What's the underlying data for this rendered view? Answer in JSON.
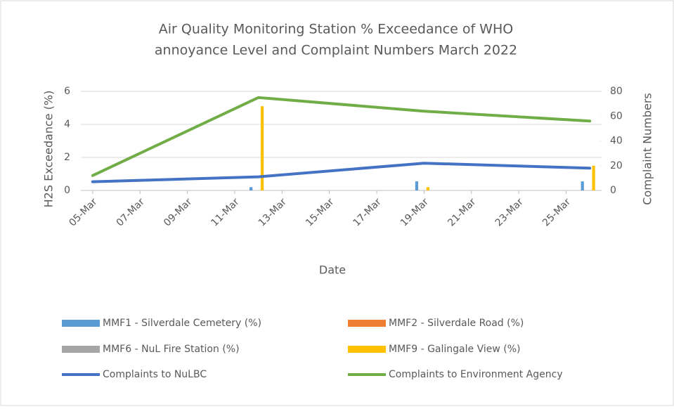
{
  "chart_data": {
    "type": "bar-line",
    "title_lines": [
      "Air Quality Monitoring Station % Exceedance of WHO",
      "annoyance Level and Complaint Numbers March 2022"
    ],
    "xlabel": "Date",
    "ylabel": "H2S Exceedance (%)",
    "y2label": "Complaint Numbers",
    "xlim": [
      4.5,
      26.5
    ],
    "xticks": [
      {
        "value": 5,
        "label": "05-Mar"
      },
      {
        "value": 7,
        "label": "07-Mar"
      },
      {
        "value": 9,
        "label": "09-Mar"
      },
      {
        "value": 11,
        "label": "11-Mar"
      },
      {
        "value": 13,
        "label": "13-Mar"
      },
      {
        "value": 15,
        "label": "15-Mar"
      },
      {
        "value": 17,
        "label": "17-Mar"
      },
      {
        "value": 19,
        "label": "19-Mar"
      },
      {
        "value": 21,
        "label": "21-Mar"
      },
      {
        "value": 23,
        "label": "23-Mar"
      },
      {
        "value": 25,
        "label": "25-Mar"
      }
    ],
    "ylim": [
      0,
      6
    ],
    "yticks": [
      0,
      2,
      4,
      6
    ],
    "y2lim": [
      0,
      80
    ],
    "y2ticks": [
      0,
      20,
      40,
      60,
      80
    ],
    "grid": true,
    "legend": "bottom",
    "series": [
      {
        "name": "MMF1 - Silverdale Cemetery (%)",
        "kind": "bar",
        "color": "#5b9bd5",
        "x": [
          12,
          19,
          26
        ],
        "values": [
          0.2,
          0.55,
          0.55
        ]
      },
      {
        "name": "MMF2 - Silverdale Road (%)",
        "kind": "bar",
        "color": "#ed7d31",
        "x": [
          12,
          19,
          26
        ],
        "values": [
          0,
          0,
          0
        ]
      },
      {
        "name": "MMF6 - NuL Fire Station (%)",
        "kind": "bar",
        "color": "#a5a5a5",
        "x": [
          12,
          19,
          26
        ],
        "values": [
          0,
          0,
          0
        ]
      },
      {
        "name": "MMF9 - Galingale View (%)",
        "kind": "bar",
        "color": "#ffc000",
        "x": [
          12,
          19,
          26
        ],
        "values": [
          5.1,
          0.2,
          1.5
        ]
      },
      {
        "name": "Complaints to NuLBC",
        "kind": "line",
        "axis": "y2",
        "color": "#4472c4",
        "x": [
          5,
          12,
          19,
          26
        ],
        "values": [
          7,
          11,
          22,
          18
        ]
      },
      {
        "name": "Complaints to Environment Agency",
        "kind": "line",
        "axis": "y2",
        "color": "#70ad47",
        "x": [
          5,
          12,
          19,
          26
        ],
        "values": [
          12,
          75,
          64,
          56
        ]
      }
    ]
  }
}
